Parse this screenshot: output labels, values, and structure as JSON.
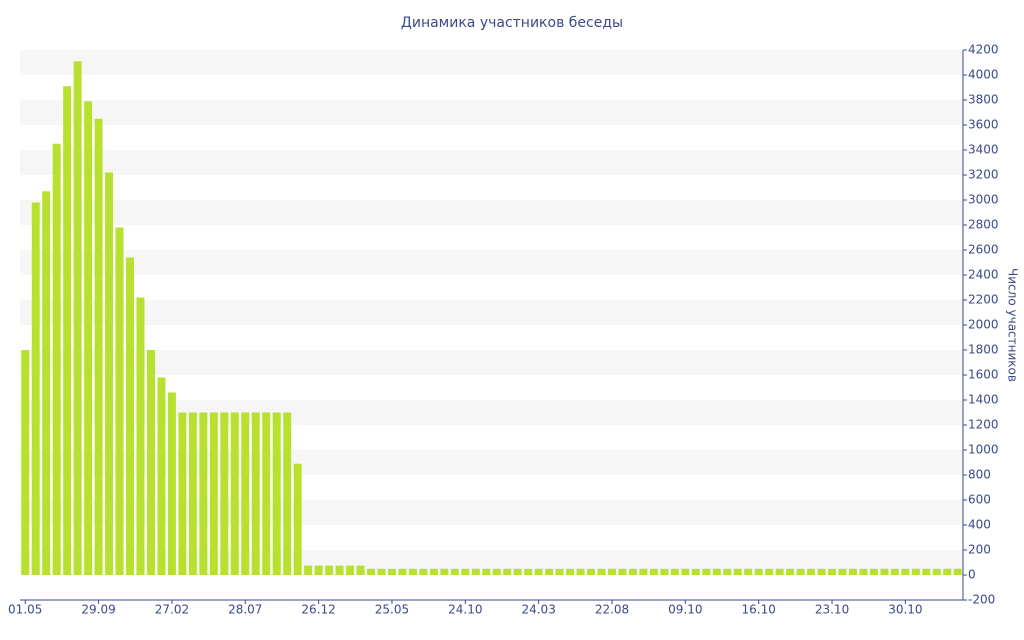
{
  "chart_data": {
    "type": "bar",
    "title": "Динамика участников беседы",
    "y_label": "Число участников",
    "categories": [
      "01.05",
      null,
      null,
      null,
      null,
      null,
      null,
      "29.09",
      null,
      null,
      null,
      null,
      null,
      null,
      "27.02",
      null,
      null,
      null,
      null,
      null,
      null,
      "28.07",
      null,
      null,
      null,
      null,
      null,
      null,
      "26.12",
      null,
      null,
      null,
      null,
      null,
      null,
      "25.05",
      null,
      null,
      null,
      null,
      null,
      null,
      "24.10",
      null,
      null,
      null,
      null,
      null,
      null,
      "24.03",
      null,
      null,
      null,
      null,
      null,
      null,
      "22.08",
      null,
      null,
      null,
      null,
      null,
      null,
      "09.10",
      null,
      null,
      null,
      null,
      null,
      null,
      "16.10",
      null,
      null,
      null,
      null,
      null,
      null,
      "23.10",
      null,
      null,
      null,
      null,
      null,
      null,
      "30.10",
      null,
      null,
      null,
      null,
      null
    ],
    "values": [
      1800,
      2980,
      3070,
      3450,
      3910,
      4110,
      3790,
      3650,
      3220,
      2780,
      2540,
      2220,
      1800,
      1580,
      1460,
      1300,
      1300,
      1300,
      1300,
      1300,
      1300,
      1300,
      1300,
      1300,
      1300,
      1300,
      890,
      75,
      75,
      75,
      75,
      75,
      75,
      50,
      50,
      50,
      50,
      50,
      50,
      50,
      50,
      50,
      50,
      50,
      50,
      50,
      50,
      50,
      50,
      50,
      50,
      50,
      50,
      50,
      50,
      50,
      50,
      50,
      50,
      50,
      50,
      50,
      50,
      50,
      50,
      50,
      50,
      50,
      50,
      50,
      50,
      50,
      50,
      50,
      50,
      50,
      50,
      50,
      50,
      50,
      50,
      50,
      50,
      50,
      50,
      50,
      50,
      50,
      50,
      50
    ],
    "color": "#b8e02e",
    "ylim": [
      -200,
      4200
    ],
    "yticks": [
      -200,
      0,
      200,
      400,
      600,
      800,
      1000,
      1200,
      1400,
      1600,
      1800,
      2000,
      2200,
      2400,
      2600,
      2800,
      3000,
      3200,
      3400,
      3600,
      3800,
      4000,
      4200
    ],
    "grid": true,
    "y_axis_side": "right"
  }
}
